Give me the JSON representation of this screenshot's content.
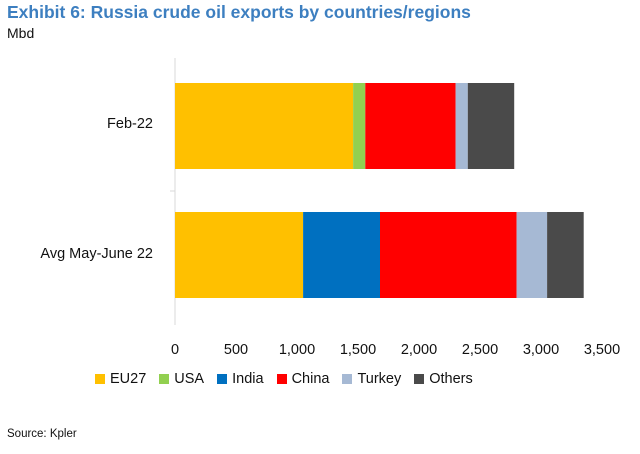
{
  "chart_data": {
    "type": "bar",
    "orientation": "horizontal",
    "stacked": true,
    "title": "Exhibit 6: Russia crude oil exports by countries/regions",
    "unit": "Mbd",
    "categories": [
      "Feb-22",
      "Avg May-June 22"
    ],
    "series": [
      {
        "name": "EU27",
        "color": "#FFC000",
        "values": [
          1460,
          1050
        ]
      },
      {
        "name": "USA",
        "color": "#92D050",
        "values": [
          100,
          0
        ]
      },
      {
        "name": "India",
        "color": "#0070C0",
        "values": [
          0,
          630
        ]
      },
      {
        "name": "China",
        "color": "#FF0000",
        "values": [
          740,
          1120
        ]
      },
      {
        "name": "Turkey",
        "color": "#A6B9D4",
        "values": [
          100,
          250
        ]
      },
      {
        "name": "Others",
        "color": "#4A4A4A",
        "values": [
          380,
          300
        ]
      }
    ],
    "xlim": [
      0,
      3500
    ],
    "xticks": [
      "0",
      "500",
      "1,000",
      "1,500",
      "2,000",
      "2,500",
      "3,000",
      "3,500"
    ],
    "grid": false,
    "legend_position": "bottom"
  },
  "source": "Source: Kpler"
}
